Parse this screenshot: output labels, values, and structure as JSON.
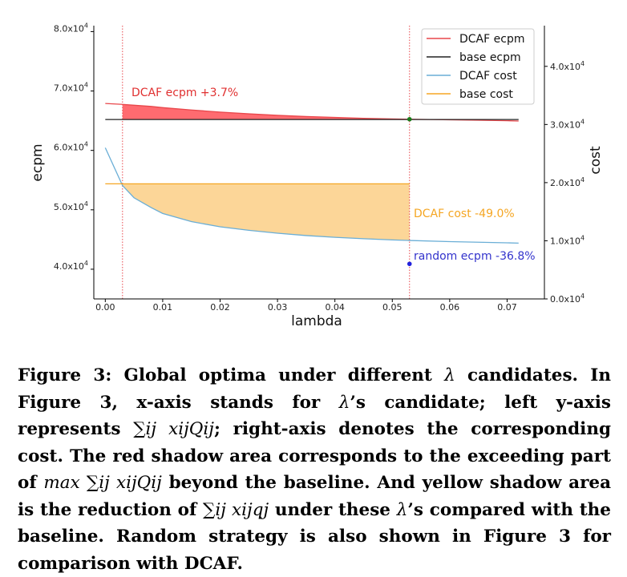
{
  "chart_data": {
    "type": "line",
    "xlabel": "lambda",
    "ylabel_left": "ecpm",
    "ylabel_right": "cost",
    "xlim": [
      -0.002,
      0.0765
    ],
    "ylim_left": [
      35000,
      81000
    ],
    "ylim_right": [
      0,
      47000
    ],
    "x_ticks": [
      {
        "v": 0.0,
        "label": "0.00"
      },
      {
        "v": 0.01,
        "label": "0.01"
      },
      {
        "v": 0.02,
        "label": "0.02"
      },
      {
        "v": 0.03,
        "label": "0.03"
      },
      {
        "v": 0.04,
        "label": "0.04"
      },
      {
        "v": 0.05,
        "label": "0.05"
      },
      {
        "v": 0.06,
        "label": "0.06"
      },
      {
        "v": 0.07,
        "label": "0.07"
      }
    ],
    "y_left_ticks": [
      {
        "v": 40000,
        "base": "4.0x10",
        "exp": "4"
      },
      {
        "v": 50000,
        "base": "5.0x10",
        "exp": "4"
      },
      {
        "v": 60000,
        "base": "6.0x10",
        "exp": "4"
      },
      {
        "v": 70000,
        "base": "7.0x10",
        "exp": "4"
      },
      {
        "v": 80000,
        "base": "8.0x10",
        "exp": "4"
      }
    ],
    "y_right_ticks": [
      {
        "v": 0,
        "base": "0.0x10",
        "exp": "4"
      },
      {
        "v": 10000,
        "base": "1.0x10",
        "exp": "4"
      },
      {
        "v": 20000,
        "base": "2.0x10",
        "exp": "4"
      },
      {
        "v": 30000,
        "base": "3.0x10",
        "exp": "4"
      },
      {
        "v": 40000,
        "base": "4.0x10",
        "exp": "4"
      }
    ],
    "x": [
      0.0,
      0.003,
      0.005,
      0.008,
      0.01,
      0.015,
      0.02,
      0.025,
      0.03,
      0.035,
      0.04,
      0.045,
      0.05,
      0.053,
      0.06,
      0.065,
      0.07,
      0.072
    ],
    "series": [
      {
        "name": "DCAF ecpm",
        "axis": "left",
        "color": "#e8474b",
        "values": [
          67900,
          67750,
          67600,
          67400,
          67200,
          66800,
          66450,
          66150,
          65900,
          65700,
          65550,
          65400,
          65300,
          65250,
          65150,
          65080,
          65000,
          64950
        ]
      },
      {
        "name": "base ecpm",
        "axis": "left",
        "color": "#222222",
        "values": [
          65200,
          65200,
          65200,
          65200,
          65200,
          65200,
          65200,
          65200,
          65200,
          65200,
          65200,
          65200,
          65200,
          65200,
          65200,
          65200,
          65200,
          65200
        ]
      },
      {
        "name": "DCAF cost",
        "axis": "right",
        "color": "#6aaed6",
        "values": [
          26000,
          19500,
          17400,
          15700,
          14700,
          13300,
          12400,
          11800,
          11300,
          10900,
          10600,
          10350,
          10150,
          10050,
          9850,
          9750,
          9650,
          9600
        ]
      },
      {
        "name": "base cost",
        "axis": "right",
        "color": "#f5a623",
        "values": [
          19800,
          19800,
          19800,
          19800,
          19800,
          19800,
          19800,
          19800,
          19800,
          19800,
          19800,
          19800,
          19800,
          19800,
          19800,
          19800,
          19800,
          19800
        ]
      }
    ],
    "vlines": [
      0.003,
      0.053
    ],
    "fills": [
      {
        "between": [
          "DCAF ecpm",
          "base ecpm"
        ],
        "from": 0.003,
        "to": 0.053,
        "color": "#ff6b70"
      },
      {
        "between": [
          "base cost",
          "DCAF cost"
        ],
        "from": 0.003,
        "to": 0.053,
        "color": "#fcd698"
      }
    ],
    "points": [
      {
        "x": 0.053,
        "y": 65250,
        "axis": "left",
        "color": "#1a7a1a"
      },
      {
        "x": 0.053,
        "y": 40900,
        "axis": "left",
        "color": "#2222dd"
      }
    ],
    "annotations": [
      {
        "id": "ecpm",
        "text": "DCAF ecpm +3.7%",
        "color": "#e03030"
      },
      {
        "id": "cost",
        "text": "DCAF cost -49.0%",
        "color": "#f5a623"
      },
      {
        "id": "random",
        "text": "random ecpm -36.8%",
        "color": "#3333cc"
      }
    ],
    "legend": "top-right",
    "grid": false
  },
  "caption": {
    "p1": "Figure 3:  Global optima under different ",
    "lambda": "λ",
    "p2": " candidates. In Figure 3, x-axis stands for ",
    "p3": "’s candidate; left y-axis represents ",
    "math1": "∑ij xijQij",
    "p4": "; right-axis denotes the corresponding cost. The red shadow area corresponds to the exceeding part of ",
    "math2": "max ∑ij xijQij",
    "p5": " beyond the baseline. And yellow shadow area is the reduction of ",
    "math3": "∑ij xijqj",
    "p6": " under these ",
    "p7": "’s compared with the baseline. Random strategy is also shown in Figure 3 for comparison with DCAF."
  }
}
